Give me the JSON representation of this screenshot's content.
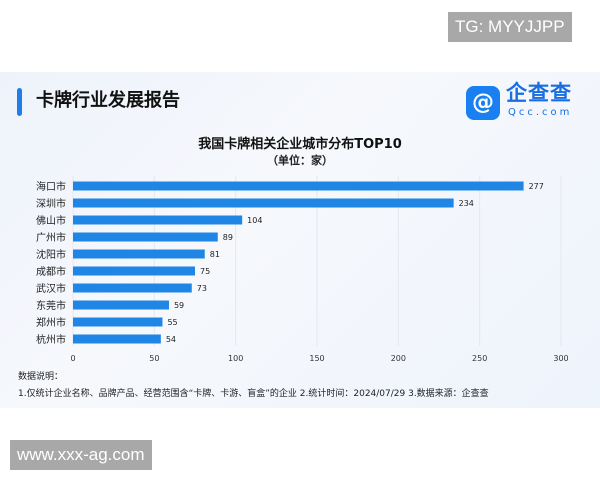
{
  "watermark_top": "TG: MYYJJPP",
  "watermark_bottom": "www.xxx-ag.com",
  "header": {
    "title": "卡牌行业发展报告",
    "logo_name": "企查查",
    "logo_url": "Qcc.com",
    "accent_color": "#1f7fe8"
  },
  "chart_data": {
    "type": "bar",
    "orientation": "horizontal",
    "title": "我国卡牌相关企业城市分布TOP10",
    "subtitle": "（单位：家）",
    "categories": [
      "海口市",
      "深圳市",
      "佛山市",
      "广州市",
      "沈阳市",
      "成都市",
      "武汉市",
      "东莞市",
      "郑州市",
      "杭州市"
    ],
    "values": [
      277,
      234,
      104,
      89,
      81,
      75,
      73,
      59,
      55,
      54
    ],
    "xlim": [
      0,
      300
    ],
    "xticks": [
      0,
      50,
      100,
      150,
      200,
      250,
      300
    ],
    "bar_color": "#1f86e6",
    "grid": true
  },
  "notes": {
    "title": "数据说明：",
    "body": "1.仅统计企业名称、品牌产品、经营范围含“卡牌、卡游、盲盒”的企业  2.统计时间：2024/07/29   3.数据来源：企查查"
  }
}
